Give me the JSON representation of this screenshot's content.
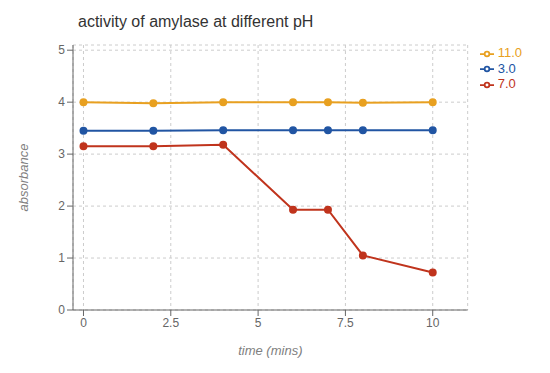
{
  "chart_data": {
    "type": "line",
    "title": "activity of amylase at different pH",
    "xlabel": "time (mins)",
    "ylabel": "absorbance",
    "x": [
      0,
      2,
      4,
      6,
      7,
      8,
      10
    ],
    "series": [
      {
        "name": "3.0",
        "color": "#2155a3",
        "values": [
          3.45,
          3.45,
          3.46,
          3.46,
          3.46,
          3.46,
          3.46
        ]
      },
      {
        "name": "7.0",
        "color": "#c0341d",
        "values": [
          3.15,
          3.15,
          3.18,
          1.93,
          1.93,
          1.05,
          0.72
        ]
      },
      {
        "name": "11.0",
        "color": "#e8a020",
        "values": [
          4.0,
          3.98,
          4.0,
          4.0,
          4.0,
          3.99,
          4.0
        ]
      }
    ],
    "xlim": [
      -0.3,
      11
    ],
    "ylim": [
      0,
      5.1
    ],
    "xticks": [
      0,
      2.5,
      5,
      7.5,
      10
    ],
    "yticks": [
      0,
      1,
      2,
      3,
      4,
      5
    ],
    "grid": true,
    "legend": "right",
    "marker": "circle"
  }
}
